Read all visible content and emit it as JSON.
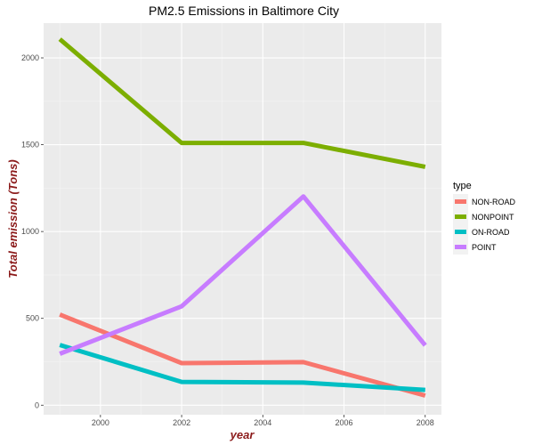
{
  "chart_data": {
    "type": "line",
    "title": "PM2.5 Emissions in Baltimore City",
    "xlabel": "year",
    "ylabel": "Total emission (Tons)",
    "x": [
      1999,
      2002,
      2005,
      2008
    ],
    "xlim": [
      1998.6,
      2008.4
    ],
    "ylim": [
      -55,
      2200
    ],
    "xticks": [
      2000,
      2002,
      2004,
      2006,
      2008
    ],
    "yticks": [
      0,
      500,
      1000,
      1500,
      2000
    ],
    "grid": true,
    "legend_title": "type",
    "legend_position": "right",
    "series": [
      {
        "name": "NON-ROAD",
        "color": "#f8766d",
        "values": [
          522,
          242,
          248,
          55
        ]
      },
      {
        "name": "NONPOINT",
        "color": "#7cae00",
        "values": [
          2108,
          1510,
          1510,
          1373
        ]
      },
      {
        "name": "ON-ROAD",
        "color": "#00bfc4",
        "values": [
          347,
          134,
          130,
          88
        ]
      },
      {
        "name": "POINT",
        "color": "#c77cff",
        "values": [
          296,
          569,
          1202,
          345
        ]
      }
    ]
  },
  "colors": {
    "panel_background": "#ebebeb",
    "grid_major": "#ffffff",
    "axis_title_color": "#8b1a1a"
  }
}
